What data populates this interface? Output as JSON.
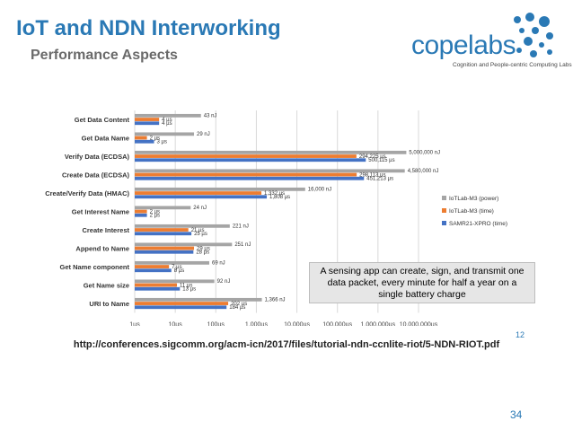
{
  "slide": {
    "title": "IoT and NDN Interworking",
    "subtitle": "Performance Aspects",
    "source": "http://conferences.sigcomm.org/acm-icn/2017/files/tutorial-ndn-ccnlite-riot/5-NDN-RIOT.pdf",
    "page_number": "34",
    "corner_mark": "12"
  },
  "logo": {
    "word": "copelabs",
    "tagline": "Cognition and People-centric Computing Labs"
  },
  "callout": {
    "text": "A sensing app can create, sign, and transmit one data packet, every minute for half a year on a single battery charge"
  },
  "colors": {
    "power": "#a5a5a5",
    "time": "#ed7d31",
    "samr": "#4472c4",
    "title": "#2a79b5",
    "grid": "#d9d9d9"
  },
  "chart_data": {
    "type": "bar",
    "orientation": "horizontal",
    "scale": "log",
    "categories": [
      "Get Data Content",
      "Get Data Name",
      "Verify Data (ECDSA)",
      "Create Data (ECDSA)",
      "Create/Verify Data (HMAC)",
      "Get Interest Name",
      "Create Interest",
      "Append to Name",
      "Get Name component",
      "Get Name size",
      "URI to Name"
    ],
    "series": [
      {
        "name": "IoTLab-M3 (power)",
        "values": [
          43,
          29,
          5000000,
          4580000,
          16000,
          24,
          221,
          251,
          69,
          92,
          1366
        ],
        "labels": [
          "43 nJ",
          "29 nJ",
          "5,000,000 nJ",
          "4,580,000 nJ",
          "16,000 nJ",
          "24 nJ",
          "221 nJ",
          "251 nJ",
          "69 nJ",
          "92 nJ",
          "1,366 nJ"
        ]
      },
      {
        "name": "IoTLab-M3 (time)",
        "values": [
          4,
          2,
          294225,
          298113,
          1332,
          2,
          21,
          29,
          7,
          11,
          202
        ],
        "labels": [
          "4 µs",
          "2 µs",
          "294,225 µs",
          "298,113 µs",
          "1,332 µs",
          "2 µs",
          "21 µs",
          "29 µs",
          "7 µs",
          "11 µs",
          "202 µs"
        ]
      },
      {
        "name": "SAMR21-XPRO (time)",
        "values": [
          4,
          3,
          500115,
          451213,
          1808,
          2,
          25,
          28,
          8,
          13,
          184
        ],
        "labels": [
          "4 µs",
          "3 µs",
          "500,115 µs",
          "451,213 µs",
          "1,808 µs",
          "2 µs",
          "25 µs",
          "28 µs",
          "8 µs",
          "13 µs",
          "184 µs"
        ]
      }
    ],
    "xticks": [
      "1µs",
      "10µs",
      "100µs",
      "1,000µs",
      "10,000µs",
      "100,000µs",
      "1,000,000µs",
      "10,000,000µs"
    ],
    "xlim": [
      1,
      10000000
    ],
    "legend": "right"
  }
}
